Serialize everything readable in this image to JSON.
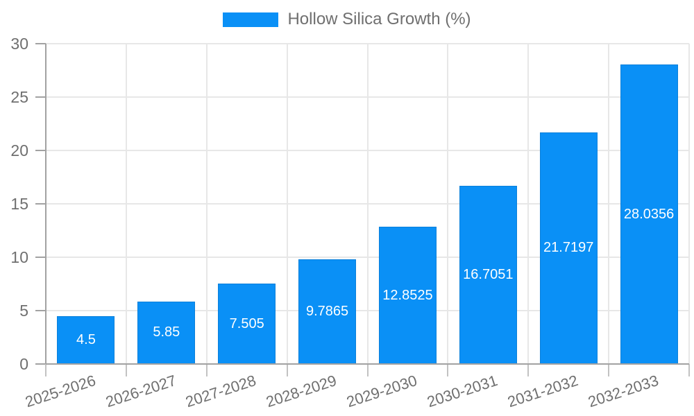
{
  "chart_data": {
    "type": "bar",
    "title": "Hollow Silica Growth (%)",
    "legend": {
      "position": "top",
      "label": "Hollow Silica Growth (%)"
    },
    "categories": [
      "2025-2026",
      "2026-2027",
      "2027-2028",
      "2028-2029",
      "2029-2030",
      "2030-2031",
      "2031-2032",
      "2032-2033"
    ],
    "values": [
      4.5,
      5.85,
      7.505,
      9.7865,
      12.8525,
      16.7051,
      21.7197,
      28.0356
    ],
    "value_labels": [
      "4.5",
      "5.85",
      "7.505",
      "9.7865",
      "12.8525",
      "16.7051",
      "21.7197",
      "28.0356"
    ],
    "xlabel": "",
    "ylabel": "",
    "ylim": [
      0,
      30
    ],
    "yticks": [
      0,
      5,
      10,
      15,
      20,
      25,
      30
    ],
    "grid": true,
    "bar_color": "#0a90f6",
    "bar_border_color": "#0b80da",
    "bar_label_color": "#ffffff",
    "grid_color": "#e7e7e7",
    "axis_color": "#a2a2a2",
    "tick_color": "#c2c2c2",
    "text_color": "#6f6f6f",
    "background_color": "#ffffff"
  }
}
